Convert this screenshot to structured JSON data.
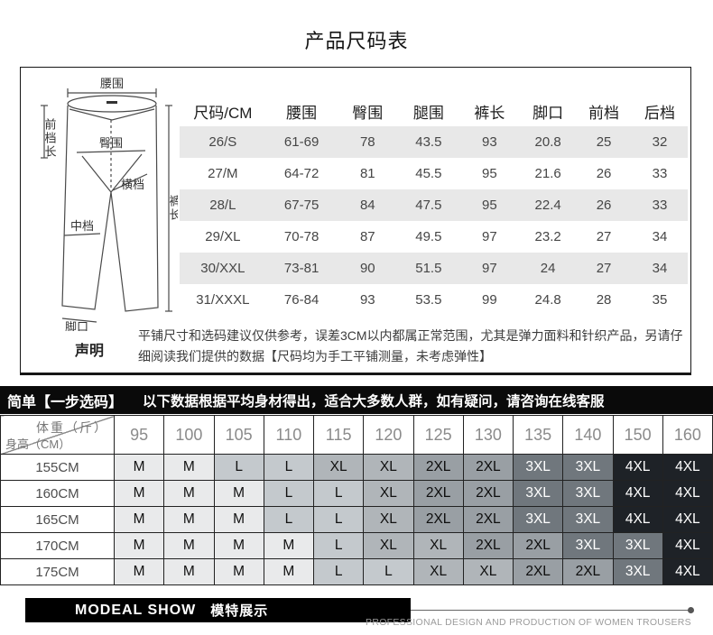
{
  "title": "产品尺码表",
  "diagram": {
    "labels": {
      "waist": "腰围",
      "front_rise": "前档长",
      "hip": "臀围",
      "cross": "横档",
      "mid": "中档",
      "length": "裤长",
      "hem": "脚口"
    }
  },
  "size_chart": {
    "columns": [
      "尺码/CM",
      "腰围",
      "臀围",
      "腿围",
      "裤长",
      "脚口",
      "前档",
      "后档"
    ],
    "rows": [
      [
        "26/S",
        "61-69",
        "78",
        "43.5",
        "93",
        "20.8",
        "25",
        "32"
      ],
      [
        "27/M",
        "64-72",
        "81",
        "45.5",
        "95",
        "21.6",
        "26",
        "33"
      ],
      [
        "28/L",
        "67-75",
        "84",
        "47.5",
        "95",
        "22.4",
        "26",
        "33"
      ],
      [
        "29/XL",
        "70-78",
        "87",
        "49.5",
        "97",
        "23.2",
        "27",
        "34"
      ],
      [
        "30/XXL",
        "73-81",
        "90",
        "51.5",
        "97",
        "24",
        "27",
        "34"
      ],
      [
        "31/XXXL",
        "76-84",
        "93",
        "53.5",
        "99",
        "24.8",
        "28",
        "35"
      ]
    ],
    "stripe_color": "#e8e8e8"
  },
  "statement": {
    "label": "声明",
    "text": "平铺尺寸和选码建议仅供参考，误差3CM以内都属正常范围，尤其是弹力面料和针织产品，另请仔细阅读我们提供的数据【尺码均为手工平铺测量，未考虑弹性】"
  },
  "banner": {
    "highlight": "简单【一步选码】",
    "text": "以下数据根据平均身材得出，适合大多数人群，如有疑问，请咨询在线客服"
  },
  "fit_chart": {
    "corner": {
      "top": "体重（斤）",
      "bottom": "身高（CM）"
    },
    "weights": [
      "95",
      "100",
      "105",
      "110",
      "115",
      "120",
      "125",
      "130",
      "135",
      "140",
      "150",
      "160"
    ],
    "rows": [
      {
        "height": "155CM",
        "sizes": [
          "M",
          "M",
          "L",
          "L",
          "XL",
          "XL",
          "2XL",
          "2XL",
          "3XL",
          "3XL",
          "4XL",
          "4XL"
        ]
      },
      {
        "height": "160CM",
        "sizes": [
          "M",
          "M",
          "M",
          "L",
          "L",
          "XL",
          "2XL",
          "2XL",
          "3XL",
          "3XL",
          "4XL",
          "4XL"
        ]
      },
      {
        "height": "165CM",
        "sizes": [
          "M",
          "M",
          "M",
          "L",
          "L",
          "XL",
          "2XL",
          "2XL",
          "3XL",
          "3XL",
          "4XL",
          "4XL"
        ]
      },
      {
        "height": "170CM",
        "sizes": [
          "M",
          "M",
          "M",
          "M",
          "L",
          "XL",
          "XL",
          "2XL",
          "2XL",
          "3XL",
          "3XL",
          "4XL"
        ]
      },
      {
        "height": "175CM",
        "sizes": [
          "M",
          "M",
          "M",
          "M",
          "L",
          "L",
          "XL",
          "XL",
          "2XL",
          "2XL",
          "3XL",
          "4XL"
        ]
      }
    ],
    "size_colors": {
      "M": {
        "bg": "#e9eaeb",
        "fg": "#111111"
      },
      "L": {
        "bg": "#c4c9cd",
        "fg": "#111111"
      },
      "XL": {
        "bg": "#b0b5b9",
        "fg": "#111111"
      },
      "2XL": {
        "bg": "#999fa4",
        "fg": "#0d0d0d"
      },
      "3XL": {
        "bg": "#70777d",
        "fg": "#ffffff"
      },
      "4XL": {
        "bg": "#1e2227",
        "fg": "#ffffff"
      }
    }
  },
  "footer": {
    "badge_en": "MODEAL SHOW",
    "badge_cn": "模特展示",
    "tagline": "PROFESSIONAL DESIGN AND PRODUCTION OF WOMEN TROUSERS"
  }
}
